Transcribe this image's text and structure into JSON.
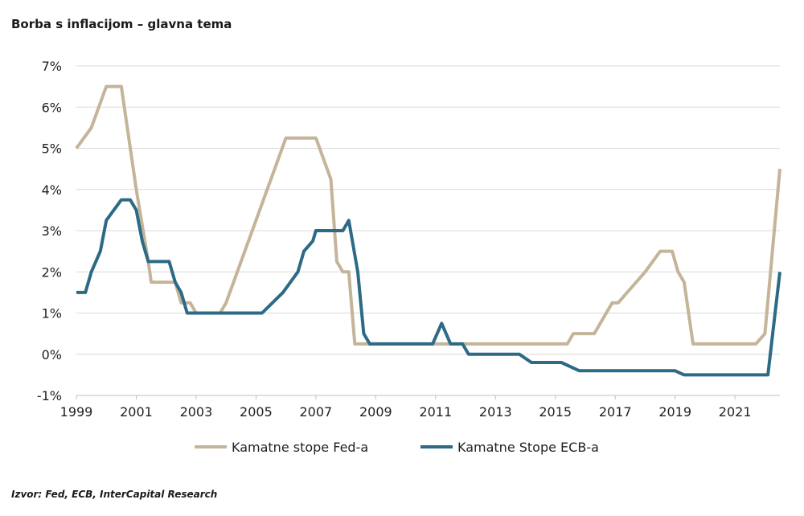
{
  "title": "Borba s inflacijom – glavna tema",
  "source": "Izvor: Fed, ECB, InterCapital Research",
  "chart_data": {
    "type": "line",
    "xlim": [
      1999,
      2022.5
    ],
    "ylim": [
      -1,
      7
    ],
    "y_ticks": [
      -1,
      0,
      1,
      2,
      3,
      4,
      5,
      6,
      7
    ],
    "y_tick_labels": [
      "-1%",
      "0%",
      "1%",
      "2%",
      "3%",
      "4%",
      "5%",
      "6%",
      "7%"
    ],
    "x_ticks": [
      1999,
      2001,
      2003,
      2005,
      2007,
      2009,
      2011,
      2013,
      2015,
      2017,
      2019,
      2021
    ],
    "x_tick_labels": [
      "1999",
      "2001",
      "2003",
      "2005",
      "2007",
      "2009",
      "2011",
      "2013",
      "2015",
      "2017",
      "2019",
      "2021"
    ],
    "grid": true,
    "legend_position": "bottom",
    "series": [
      {
        "name": "Kamatne stope Fed-a",
        "color": "#c4b49a",
        "points": [
          [
            1999.0,
            5.0
          ],
          [
            1999.5,
            5.5
          ],
          [
            2000.0,
            6.5
          ],
          [
            2000.5,
            6.5
          ],
          [
            2001.0,
            4.0
          ],
          [
            2001.4,
            2.25
          ],
          [
            2001.5,
            1.75
          ],
          [
            2002.0,
            1.75
          ],
          [
            2002.3,
            1.75
          ],
          [
            2002.5,
            1.25
          ],
          [
            2002.8,
            1.25
          ],
          [
            2003.0,
            1.0
          ],
          [
            2003.8,
            1.0
          ],
          [
            2004.0,
            1.25
          ],
          [
            2006.0,
            5.25
          ],
          [
            2007.0,
            5.25
          ],
          [
            2007.5,
            4.25
          ],
          [
            2007.7,
            2.25
          ],
          [
            2007.9,
            2.0
          ],
          [
            2008.1,
            2.0
          ],
          [
            2008.3,
            0.25
          ],
          [
            2015.4,
            0.25
          ],
          [
            2015.6,
            0.5
          ],
          [
            2016.3,
            0.5
          ],
          [
            2016.5,
            0.75
          ],
          [
            2016.9,
            1.25
          ],
          [
            2017.1,
            1.25
          ],
          [
            2018.0,
            2.0
          ],
          [
            2018.5,
            2.5
          ],
          [
            2018.9,
            2.5
          ],
          [
            2019.1,
            2.0
          ],
          [
            2019.3,
            1.75
          ],
          [
            2019.6,
            0.25
          ],
          [
            2021.7,
            0.25
          ],
          [
            2022.0,
            0.5
          ],
          [
            2022.5,
            4.5
          ]
        ]
      },
      {
        "name": "Kamatne Stope ECB-a",
        "color": "#2c6a86",
        "points": [
          [
            1999.0,
            1.5
          ],
          [
            1999.3,
            1.5
          ],
          [
            1999.5,
            2.0
          ],
          [
            1999.8,
            2.5
          ],
          [
            2000.0,
            3.25
          ],
          [
            2000.5,
            3.75
          ],
          [
            2000.8,
            3.75
          ],
          [
            2001.0,
            3.5
          ],
          [
            2001.2,
            2.75
          ],
          [
            2001.4,
            2.25
          ],
          [
            2002.1,
            2.25
          ],
          [
            2002.3,
            1.75
          ],
          [
            2002.5,
            1.5
          ],
          [
            2002.7,
            1.0
          ],
          [
            2005.2,
            1.0
          ],
          [
            2005.9,
            1.5
          ],
          [
            2006.4,
            2.0
          ],
          [
            2006.6,
            2.5
          ],
          [
            2006.9,
            2.75
          ],
          [
            2007.0,
            3.0
          ],
          [
            2007.9,
            3.0
          ],
          [
            2008.1,
            3.25
          ],
          [
            2008.4,
            2.0
          ],
          [
            2008.6,
            0.5
          ],
          [
            2008.8,
            0.25
          ],
          [
            2010.9,
            0.25
          ],
          [
            2011.2,
            0.75
          ],
          [
            2011.5,
            0.25
          ],
          [
            2011.9,
            0.25
          ],
          [
            2012.1,
            0.0
          ],
          [
            2013.8,
            0.0
          ],
          [
            2014.2,
            -0.2
          ],
          [
            2015.2,
            -0.2
          ],
          [
            2015.8,
            -0.4
          ],
          [
            2019.0,
            -0.4
          ],
          [
            2019.3,
            -0.5
          ],
          [
            2022.1,
            -0.5
          ],
          [
            2022.5,
            2.0
          ]
        ]
      }
    ]
  }
}
